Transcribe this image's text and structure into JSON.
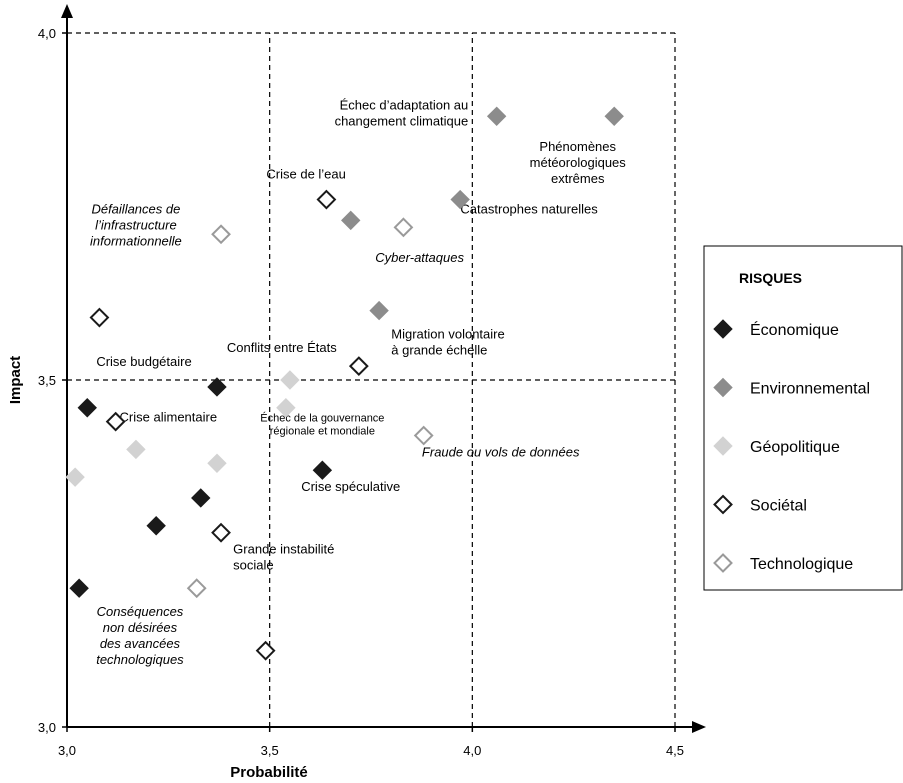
{
  "chart_data": {
    "type": "scatter",
    "xlabel": "Probabilité",
    "ylabel": "Impact",
    "xlim": [
      3.0,
      4.5
    ],
    "ylim": [
      3.0,
      4.0
    ],
    "x_ticks": [
      "3,0",
      "3,5",
      "4,0",
      "4,5"
    ],
    "y_ticks": [
      "3,0",
      "3,5",
      "4,0"
    ],
    "grid": "dashed lines at 3,5 / 4,0 / 4,5 (x) and 3,5 / 4,0 (y)",
    "legend": {
      "title": "RISQUES",
      "placement": "right",
      "entries": [
        {
          "key": "eco",
          "label": "Économique"
        },
        {
          "key": "env",
          "label": "Environnemental"
        },
        {
          "key": "geo",
          "label": "Géopolitique"
        },
        {
          "key": "soc",
          "label": "Sociétal"
        },
        {
          "key": "tech",
          "label": "Technologique"
        }
      ]
    },
    "colors": {
      "eco": "#1a1a1a",
      "env": "#8c8c8c",
      "geo": "#d2d2d2",
      "soc": "#1a1a1a",
      "tech": "#9a9a9a"
    },
    "points": [
      {
        "cat": "eco",
        "x": 3.37,
        "y": 3.49
      },
      {
        "cat": "eco",
        "x": 3.05,
        "y": 3.46
      },
      {
        "cat": "eco",
        "x": 3.33,
        "y": 3.33
      },
      {
        "cat": "eco",
        "x": 3.22,
        "y": 3.29
      },
      {
        "cat": "eco",
        "x": 3.03,
        "y": 3.2
      },
      {
        "cat": "eco",
        "x": 3.63,
        "y": 3.37
      },
      {
        "cat": "env",
        "x": 4.06,
        "y": 3.88
      },
      {
        "cat": "env",
        "x": 4.35,
        "y": 3.88
      },
      {
        "cat": "env",
        "x": 3.97,
        "y": 3.76
      },
      {
        "cat": "env",
        "x": 3.7,
        "y": 3.73
      },
      {
        "cat": "env",
        "x": 3.77,
        "y": 3.6
      },
      {
        "cat": "geo",
        "x": 3.55,
        "y": 3.5
      },
      {
        "cat": "geo",
        "x": 3.54,
        "y": 3.46
      },
      {
        "cat": "geo",
        "x": 3.17,
        "y": 3.4
      },
      {
        "cat": "geo",
        "x": 3.02,
        "y": 3.36
      },
      {
        "cat": "geo",
        "x": 3.37,
        "y": 3.38
      },
      {
        "cat": "soc",
        "x": 3.64,
        "y": 3.76
      },
      {
        "cat": "soc",
        "x": 3.08,
        "y": 3.59
      },
      {
        "cat": "soc",
        "x": 3.72,
        "y": 3.52
      },
      {
        "cat": "soc",
        "x": 3.12,
        "y": 3.44
      },
      {
        "cat": "soc",
        "x": 3.38,
        "y": 3.28
      },
      {
        "cat": "soc",
        "x": 3.49,
        "y": 3.11
      },
      {
        "cat": "tech",
        "x": 3.38,
        "y": 3.71
      },
      {
        "cat": "tech",
        "x": 3.83,
        "y": 3.72
      },
      {
        "cat": "tech",
        "x": 3.88,
        "y": 3.42
      },
      {
        "cat": "tech",
        "x": 3.32,
        "y": 3.2
      }
    ],
    "annotations": [
      {
        "x": 3.99,
        "y": 3.89,
        "anchor": "end",
        "italic": false,
        "small": false,
        "lines": [
          "Échec d’adaptation au",
          "changement climatique"
        ]
      },
      {
        "x": 4.26,
        "y": 3.83,
        "anchor": "middle",
        "italic": false,
        "small": false,
        "lines": [
          "Phénomènes",
          "météorologiques",
          "extrêmes"
        ]
      },
      {
        "x": 3.59,
        "y": 3.79,
        "anchor": "middle",
        "italic": false,
        "small": false,
        "lines": [
          "Crise de l’eau"
        ]
      },
      {
        "x": 4.14,
        "y": 3.74,
        "anchor": "middle",
        "italic": false,
        "small": false,
        "lines": [
          "Catastrophes naturelles"
        ]
      },
      {
        "x": 3.17,
        "y": 3.74,
        "anchor": "middle",
        "italic": true,
        "small": false,
        "lines": [
          "Défaillances de",
          "l’infrastructure",
          "informationnelle"
        ]
      },
      {
        "x": 3.87,
        "y": 3.67,
        "anchor": "middle",
        "italic": true,
        "small": false,
        "lines": [
          "Cyber-attaques"
        ]
      },
      {
        "x": 3.8,
        "y": 3.56,
        "anchor": "start",
        "italic": false,
        "small": false,
        "lines": [
          "Migration volontaire",
          "à grande échelle"
        ]
      },
      {
        "x": 3.53,
        "y": 3.54,
        "anchor": "middle",
        "italic": false,
        "small": false,
        "lines": [
          "Conflits entre États"
        ]
      },
      {
        "x": 3.19,
        "y": 3.52,
        "anchor": "middle",
        "italic": false,
        "small": false,
        "lines": [
          "Crise budgétaire"
        ]
      },
      {
        "x": 3.25,
        "y": 3.44,
        "anchor": "middle",
        "italic": false,
        "small": false,
        "lines": [
          "Crise alimentaire"
        ]
      },
      {
        "x": 3.63,
        "y": 3.44,
        "anchor": "middle",
        "italic": false,
        "small": true,
        "lines": [
          "Échec de la gouvernance",
          "régionale et mondiale"
        ]
      },
      {
        "x": 4.07,
        "y": 3.39,
        "anchor": "middle",
        "italic": true,
        "small": false,
        "lines": [
          "Fraude ou vols de données"
        ]
      },
      {
        "x": 3.7,
        "y": 3.34,
        "anchor": "middle",
        "italic": false,
        "small": false,
        "lines": [
          "Crise spéculative"
        ]
      },
      {
        "x": 3.41,
        "y": 3.25,
        "anchor": "start",
        "italic": false,
        "small": false,
        "lines": [
          "Grande instabilité",
          "sociale"
        ]
      },
      {
        "x": 3.18,
        "y": 3.16,
        "anchor": "middle",
        "italic": true,
        "small": false,
        "lines": [
          "Conséquences",
          "non désirées",
          "des avancées",
          "technologiques"
        ]
      }
    ]
  }
}
